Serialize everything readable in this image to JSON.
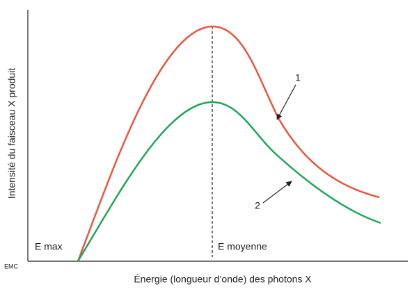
{
  "y_axis_label": "Intensité du faisceau X produit",
  "x_axis_label": "Énergie (longueur d’onde) des photons X",
  "annotations": {
    "e_max": "E max",
    "e_moyenne": "E moyenne",
    "curve_1": "1",
    "curve_2": "2"
  },
  "logo": "EMC"
}
